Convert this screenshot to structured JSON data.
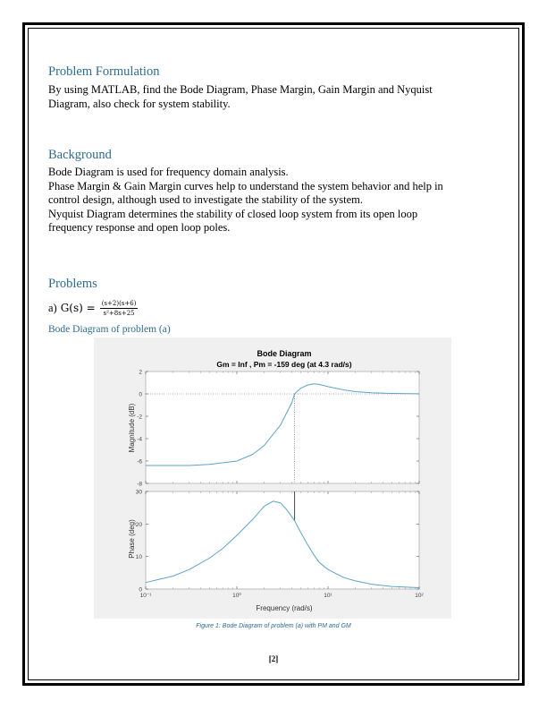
{
  "sections": {
    "formulation": {
      "heading": "Problem Formulation",
      "lines": [
        "By using MATLAB, find the Bode Diagram, Phase Margin, Gain Margin and Nyquist",
        "Diagram, also check for system stability."
      ]
    },
    "background": {
      "heading": "Background",
      "lines": [
        "Bode Diagram is used for frequency domain analysis.",
        "Phase Margin & Gain Margin curves help to understand the system behavior and help in",
        "control design, although used to investigate the stability of the system.",
        "Nyquist Diagram determines the stability of closed loop system from its open loop",
        "frequency response and open loop poles."
      ]
    },
    "problems": {
      "heading": "Problems",
      "equation": {
        "prefix": "a)",
        "lhs": "G(s) =",
        "numerator": "(s+2)(s+6)",
        "denominator": "s²+8s+25"
      },
      "subheading": "Bode Diagram of problem (a)"
    }
  },
  "figure": {
    "caption": "Figure 1: Bode Diagram of problem (a) with PM and GM",
    "title": "Bode Diagram",
    "subtitle": "Gm = Inf ,  Pm = -159 deg (at 4.3 rad/s)",
    "mag_ylabel": "Magnitude (dB)",
    "phase_ylabel": "Phase (deg)",
    "xlabel": "Frequency  (rad/s)",
    "line_color": "#5ba3c9",
    "crossover_color": "#333333"
  },
  "chart_data": [
    {
      "type": "line",
      "title": "Bode Diagram",
      "subtitle": "Gm = Inf ,  Pm = -159 deg (at 4.3 rad/s)",
      "ylabel": "Magnitude (dB)",
      "xscale": "log",
      "xlim": [
        0.1,
        100
      ],
      "ylim": [
        -8,
        2
      ],
      "yticks": [
        2,
        0,
        -2,
        -4,
        -6,
        -8
      ],
      "grid": false,
      "x": [
        0.1,
        0.3,
        0.5,
        1,
        1.5,
        2,
        3,
        4,
        4.3,
        5,
        6,
        7,
        8,
        10,
        15,
        20,
        30,
        50,
        100
      ],
      "series": [
        {
          "values": [
            -6.4,
            -6.4,
            -6.3,
            -6.0,
            -5.4,
            -4.6,
            -2.8,
            -0.8,
            0.0,
            0.5,
            0.8,
            0.9,
            0.85,
            0.65,
            0.35,
            0.2,
            0.1,
            0.04,
            0.01
          ]
        }
      ],
      "crossover_x": 4.3
    },
    {
      "type": "line",
      "ylabel": "Phase (deg)",
      "xlabel": "Frequency  (rad/s)",
      "xscale": "log",
      "xlim": [
        0.1,
        100
      ],
      "xticks": [
        "10⁻¹",
        "10⁰",
        "10¹",
        "10²"
      ],
      "ylim": [
        0,
        30
      ],
      "yticks": [
        30,
        20,
        10,
        0
      ],
      "grid": false,
      "x": [
        0.1,
        0.2,
        0.3,
        0.5,
        0.7,
        1,
        1.5,
        2,
        2.5,
        3,
        3.5,
        4.3,
        5,
        6,
        7,
        8,
        10,
        15,
        20,
        30,
        50,
        100
      ],
      "series": [
        {
          "values": [
            2.0,
            4.0,
            6.0,
            9.5,
            12.5,
            16.5,
            21.5,
            25.5,
            27.0,
            26.5,
            24.5,
            21.0,
            17.5,
            13.5,
            10.5,
            8.2,
            6.0,
            3.5,
            2.5,
            1.5,
            0.8,
            0.4
          ]
        }
      ],
      "crossover_x": 4.3,
      "crossover_y": 21.0
    }
  ],
  "page_number": "[2]"
}
